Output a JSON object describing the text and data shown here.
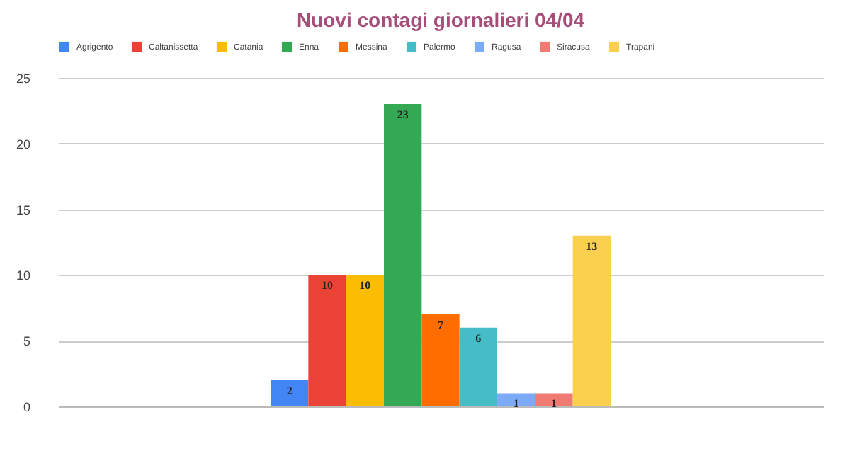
{
  "chart_data": {
    "type": "bar",
    "title": "Nuovi contagi giornalieri 04/04",
    "categories": [
      null
    ],
    "series": [
      {
        "name": "Agrigento",
        "color": "#4285f4",
        "values": [
          2
        ]
      },
      {
        "name": "Caltanissetta",
        "color": "#ea4335",
        "values": [
          10
        ]
      },
      {
        "name": "Catania",
        "color": "#fbbc04",
        "values": [
          10
        ]
      },
      {
        "name": "Enna",
        "color": "#34a853",
        "values": [
          23
        ]
      },
      {
        "name": "Messina",
        "color": "#ff6d01",
        "values": [
          7
        ]
      },
      {
        "name": "Palermo",
        "color": "#46bdc6",
        "values": [
          6
        ]
      },
      {
        "name": "Ragusa",
        "color": "#7baaf7",
        "values": [
          1
        ]
      },
      {
        "name": "Siracusa",
        "color": "#f07b72",
        "values": [
          1
        ]
      },
      {
        "name": "Trapani",
        "color": "#fcd04f",
        "values": [
          13
        ]
      }
    ],
    "ylim": [
      0,
      25
    ],
    "yticks": [
      0,
      5,
      10,
      15,
      20,
      25
    ],
    "grid": true,
    "legend": "top",
    "data_labels": true
  }
}
